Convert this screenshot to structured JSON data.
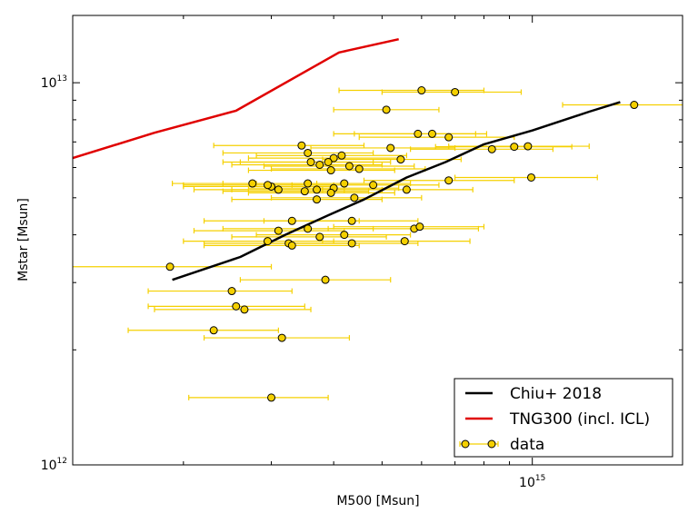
{
  "chart_data": {
    "type": "scatter",
    "title": "",
    "xlabel": "M500 [Msun]",
    "ylabel": "Mstar [Msun]",
    "xscale": "log",
    "yscale": "log",
    "xlim": [
      120000000000000.0,
      2000000000000000.0
    ],
    "ylim": [
      1000000000000.0,
      15000000000000.0
    ],
    "x_ticks": [
      {
        "value": 1000000000000000.0,
        "base": "10",
        "exp": "15"
      }
    ],
    "y_ticks": [
      {
        "value": 1000000000000.0,
        "base": "10",
        "exp": "12"
      },
      {
        "value": 10000000000000.0,
        "base": "10",
        "exp": "13"
      }
    ],
    "legend": {
      "position": "lower-right",
      "entries": [
        {
          "label": "Chiu+ 2018",
          "kind": "line",
          "color": "#000000"
        },
        {
          "label": "TNG300 (incl. ICL)",
          "kind": "line",
          "color": "#e00000"
        },
        {
          "label": "data",
          "kind": "errorbar-marker",
          "color": "#f5d000"
        }
      ]
    },
    "series": [
      {
        "name": "Chiu+ 2018",
        "kind": "line",
        "color": "#000000",
        "x": [
          190000000000000.0,
          260000000000000.0,
          320000000000000.0,
          390000000000000.0,
          460000000000000.0,
          560000000000000.0,
          670000000000000.0,
          800000000000000.0,
          1000000000000000.0,
          1300000000000000.0,
          1500000000000000.0
        ],
        "y": [
          3050000000000.0,
          3500000000000.0,
          4000000000000.0,
          4500000000000.0,
          4950000000000.0,
          5650000000000.0,
          6200000000000.0,
          6900000000000.0,
          7500000000000.0,
          8400000000000.0,
          8900000000000.0
        ]
      },
      {
        "name": "TNG300 (incl. ICL)",
        "kind": "line",
        "color": "#e00000",
        "x": [
          120000000000000.0,
          175000000000000.0,
          255000000000000.0,
          410000000000000.0,
          540000000000000.0
        ],
        "y": [
          6350000000000.0,
          7400000000000.0,
          8450000000000.0,
          12000000000000.0,
          13000000000000.0
        ]
      },
      {
        "name": "data",
        "kind": "errorbar",
        "color": "#f5d000",
        "points": [
          {
            "x": 188000000000000.0,
            "y": 3300000000000.0,
            "xlo": 90000000000000.0,
            "xhi": 300000000000000.0
          },
          {
            "x": 600000000000000.0,
            "y": 9550000000000.0,
            "xlo": 410000000000000.0,
            "xhi": 800000000000000.0
          },
          {
            "x": 700000000000000.0,
            "y": 9450000000000.0,
            "xlo": 500000000000000.0,
            "xhi": 950000000000000.0
          },
          {
            "x": 510000000000000.0,
            "y": 8500000000000.0,
            "xlo": 400000000000000.0,
            "xhi": 650000000000000.0
          },
          {
            "x": 1600000000000000.0,
            "y": 8750000000000.0,
            "xlo": 1150000000000000.0,
            "xhi": 2200000000000000.0
          },
          {
            "x": 590000000000000.0,
            "y": 7350000000000.0,
            "xlo": 400000000000000.0,
            "xhi": 770000000000000.0
          },
          {
            "x": 630000000000000.0,
            "y": 7350000000000.0,
            "xlo": 440000000000000.0,
            "xhi": 810000000000000.0
          },
          {
            "x": 680000000000000.0,
            "y": 7200000000000.0,
            "xlo": 450000000000000.0,
            "xhi": 920000000000000.0
          },
          {
            "x": 345000000000000.0,
            "y": 6850000000000.0,
            "xlo": 230000000000000.0,
            "xhi": 460000000000000.0
          },
          {
            "x": 520000000000000.0,
            "y": 6750000000000.0,
            "xlo": 360000000000000.0,
            "xhi": 700000000000000.0
          },
          {
            "x": 830000000000000.0,
            "y": 6700000000000.0,
            "xlo": 570000000000000.0,
            "xhi": 1100000000000000.0
          },
          {
            "x": 920000000000000.0,
            "y": 6800000000000.0,
            "xlo": 640000000000000.0,
            "xhi": 1200000000000000.0
          },
          {
            "x": 980000000000000.0,
            "y": 6820000000000.0,
            "xlo": 680000000000000.0,
            "xhi": 1300000000000000.0
          },
          {
            "x": 355000000000000.0,
            "y": 6550000000000.0,
            "xlo": 240000000000000.0,
            "xhi": 480000000000000.0
          },
          {
            "x": 400000000000000.0,
            "y": 6350000000000.0,
            "xlo": 270000000000000.0,
            "xhi": 540000000000000.0
          },
          {
            "x": 415000000000000.0,
            "y": 6450000000000.0,
            "xlo": 280000000000000.0,
            "xhi": 560000000000000.0
          },
          {
            "x": 545000000000000.0,
            "y": 6300000000000.0,
            "xlo": 380000000000000.0,
            "xhi": 720000000000000.0
          },
          {
            "x": 360000000000000.0,
            "y": 6200000000000.0,
            "xlo": 240000000000000.0,
            "xhi": 480000000000000.0
          },
          {
            "x": 375000000000000.0,
            "y": 6100000000000.0,
            "xlo": 250000000000000.0,
            "xhi": 500000000000000.0
          },
          {
            "x": 390000000000000.0,
            "y": 6200000000000.0,
            "xlo": 260000000000000.0,
            "xhi": 520000000000000.0
          },
          {
            "x": 430000000000000.0,
            "y": 6050000000000.0,
            "xlo": 290000000000000.0,
            "xhi": 580000000000000.0
          },
          {
            "x": 450000000000000.0,
            "y": 5950000000000.0,
            "xlo": 300000000000000.0,
            "xhi": 610000000000000.0
          },
          {
            "x": 395000000000000.0,
            "y": 5900000000000.0,
            "xlo": 270000000000000.0,
            "xhi": 530000000000000.0
          },
          {
            "x": 995000000000000.0,
            "y": 5650000000000.0,
            "xlo": 700000000000000.0,
            "xhi": 1350000000000000.0
          },
          {
            "x": 680000000000000.0,
            "y": 5550000000000.0,
            "xlo": 460000000000000.0,
            "xhi": 920000000000000.0
          },
          {
            "x": 275000000000000.0,
            "y": 5450000000000.0,
            "xlo": 190000000000000.0,
            "xhi": 370000000000000.0
          },
          {
            "x": 300000000000000.0,
            "y": 5350000000000.0,
            "xlo": 200000000000000.0,
            "xhi": 400000000000000.0
          },
          {
            "x": 295000000000000.0,
            "y": 5400000000000.0,
            "xlo": 200000000000000.0,
            "xhi": 400000000000000.0
          },
          {
            "x": 355000000000000.0,
            "y": 5450000000000.0,
            "xlo": 240000000000000.0,
            "xhi": 480000000000000.0
          },
          {
            "x": 400000000000000.0,
            "y": 5300000000000.0,
            "xlo": 270000000000000.0,
            "xhi": 540000000000000.0
          },
          {
            "x": 420000000000000.0,
            "y": 5450000000000.0,
            "xlo": 280000000000000.0,
            "xhi": 570000000000000.0
          },
          {
            "x": 480000000000000.0,
            "y": 5400000000000.0,
            "xlo": 330000000000000.0,
            "xhi": 650000000000000.0
          },
          {
            "x": 560000000000000.0,
            "y": 5250000000000.0,
            "xlo": 380000000000000.0,
            "xhi": 760000000000000.0
          },
          {
            "x": 310000000000000.0,
            "y": 5250000000000.0,
            "xlo": 210000000000000.0,
            "xhi": 420000000000000.0
          },
          {
            "x": 350000000000000.0,
            "y": 5200000000000.0,
            "xlo": 240000000000000.0,
            "xhi": 470000000000000.0
          },
          {
            "x": 370000000000000.0,
            "y": 5250000000000.0,
            "xlo": 250000000000000.0,
            "xhi": 500000000000000.0
          },
          {
            "x": 395000000000000.0,
            "y": 5150000000000.0,
            "xlo": 270000000000000.0,
            "xhi": 530000000000000.0
          },
          {
            "x": 440000000000000.0,
            "y": 5000000000000.0,
            "xlo": 300000000000000.0,
            "xhi": 600000000000000.0
          },
          {
            "x": 370000000000000.0,
            "y": 4950000000000.0,
            "xlo": 250000000000000.0,
            "xhi": 500000000000000.0
          },
          {
            "x": 330000000000000.0,
            "y": 4350000000000.0,
            "xlo": 220000000000000.0,
            "xhi": 450000000000000.0
          },
          {
            "x": 435000000000000.0,
            "y": 4350000000000.0,
            "xlo": 290000000000000.0,
            "xhi": 590000000000000.0
          },
          {
            "x": 310000000000000.0,
            "y": 4100000000000.0,
            "xlo": 210000000000000.0,
            "xhi": 420000000000000.0
          },
          {
            "x": 355000000000000.0,
            "y": 4150000000000.0,
            "xlo": 240000000000000.0,
            "xhi": 480000000000000.0
          },
          {
            "x": 420000000000000.0,
            "y": 4000000000000.0,
            "xlo": 280000000000000.0,
            "xhi": 570000000000000.0
          },
          {
            "x": 580000000000000.0,
            "y": 4150000000000.0,
            "xlo": 390000000000000.0,
            "xhi": 780000000000000.0
          },
          {
            "x": 595000000000000.0,
            "y": 4200000000000.0,
            "xlo": 400000000000000.0,
            "xhi": 800000000000000.0
          },
          {
            "x": 375000000000000.0,
            "y": 3950000000000.0,
            "xlo": 250000000000000.0,
            "xhi": 510000000000000.0
          },
          {
            "x": 295000000000000.0,
            "y": 3850000000000.0,
            "xlo": 200000000000000.0,
            "xhi": 400000000000000.0
          },
          {
            "x": 325000000000000.0,
            "y": 3800000000000.0,
            "xlo": 220000000000000.0,
            "xhi": 440000000000000.0
          },
          {
            "x": 330000000000000.0,
            "y": 3750000000000.0,
            "xlo": 220000000000000.0,
            "xhi": 450000000000000.0
          },
          {
            "x": 435000000000000.0,
            "y": 3800000000000.0,
            "xlo": 290000000000000.0,
            "xhi": 590000000000000.0
          },
          {
            "x": 555000000000000.0,
            "y": 3850000000000.0,
            "xlo": 380000000000000.0,
            "xhi": 750000000000000.0
          },
          {
            "x": 385000000000000.0,
            "y": 3050000000000.0,
            "xlo": 260000000000000.0,
            "xhi": 520000000000000.0
          },
          {
            "x": 250000000000000.0,
            "y": 2850000000000.0,
            "xlo": 170000000000000.0,
            "xhi": 330000000000000.0
          },
          {
            "x": 255000000000000.0,
            "y": 2600000000000.0,
            "xlo": 170000000000000.0,
            "xhi": 350000000000000.0
          },
          {
            "x": 265000000000000.0,
            "y": 2550000000000.0,
            "xlo": 175000000000000.0,
            "xhi": 360000000000000.0
          },
          {
            "x": 230000000000000.0,
            "y": 2250000000000.0,
            "xlo": 155000000000000.0,
            "xhi": 310000000000000.0
          },
          {
            "x": 315000000000000.0,
            "y": 2150000000000.0,
            "xlo": 220000000000000.0,
            "xhi": 430000000000000.0
          },
          {
            "x": 300000000000000.0,
            "y": 1500000000000.0,
            "xlo": 205000000000000.0,
            "xhi": 390000000000000.0
          }
        ]
      }
    ]
  }
}
